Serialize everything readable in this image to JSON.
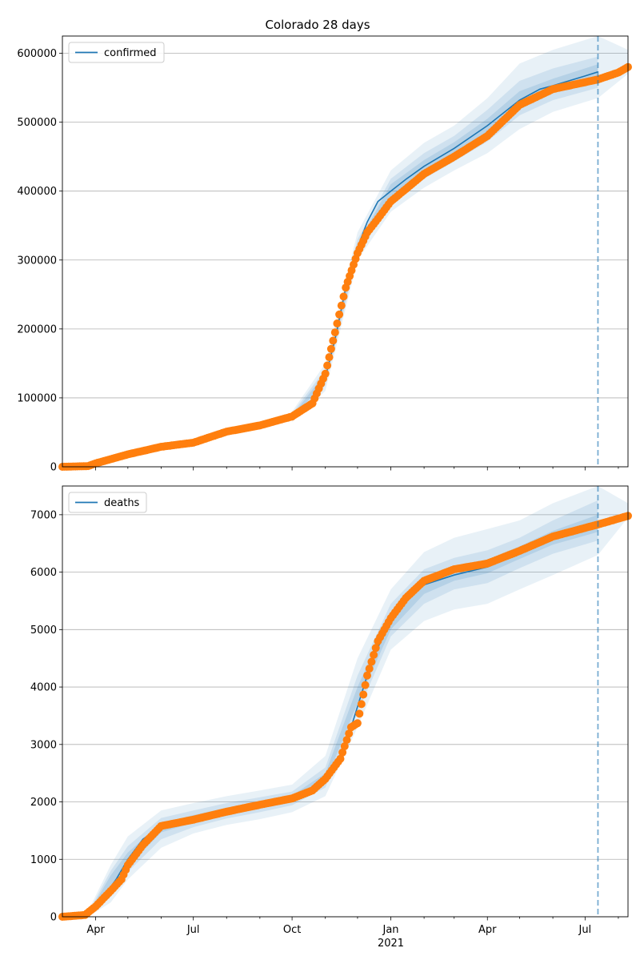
{
  "figure": {
    "title": "Colorado 28 days"
  },
  "colors": {
    "line": "#1f77b4",
    "points": "#ff7f0e",
    "band": "#1f77b4",
    "grid": "#b0b0b0",
    "axis": "#000000"
  },
  "chart_data": [
    {
      "type": "line",
      "title": "Colorado 28 days",
      "xlabel": "",
      "ylabel": "",
      "x_axis": "date",
      "xlim": [
        "2020-03-01",
        "2021-08-10"
      ],
      "ylim": [
        0,
        625000
      ],
      "grid": "horizontal",
      "legend": {
        "position": "top-left",
        "entries": [
          "confirmed"
        ]
      },
      "yticks": [
        "0",
        "100000",
        "200000",
        "300000",
        "400000",
        "500000",
        "600000"
      ],
      "xticks": [
        "Apr",
        "Jul",
        "Oct",
        "Jan",
        "Apr",
        "Jul"
      ],
      "xtick_sublabel": "2021",
      "forecast_start": "2021-07-13",
      "series": [
        {
          "name": "confirmed",
          "kind": "model_line",
          "x": [
            "2020-03-01",
            "2020-04-01",
            "2020-05-01",
            "2020-06-01",
            "2020-07-01",
            "2020-08-01",
            "2020-09-01",
            "2020-10-01",
            "2020-10-20",
            "2020-11-01",
            "2020-11-10",
            "2020-11-20",
            "2020-12-01",
            "2020-12-10",
            "2020-12-20",
            "2021-01-01",
            "2021-01-15",
            "2021-02-01",
            "2021-03-01",
            "2021-04-01",
            "2021-05-01",
            "2021-05-20",
            "2021-06-01",
            "2021-07-01",
            "2021-07-13"
          ],
          "y": [
            0,
            4000,
            18000,
            29000,
            35000,
            50000,
            60000,
            72000,
            90000,
            130000,
            185000,
            260000,
            318000,
            355000,
            385000,
            400000,
            417000,
            436000,
            462000,
            495000,
            532000,
            548000,
            553000,
            567000,
            573000
          ]
        },
        {
          "name": "confirmed observed",
          "kind": "points",
          "x": [
            "2020-03-01",
            "2020-03-25",
            "2020-04-01",
            "2020-05-01",
            "2020-06-01",
            "2020-07-01",
            "2020-08-01",
            "2020-09-01",
            "2020-10-01",
            "2020-10-20",
            "2020-11-01",
            "2020-11-10",
            "2020-11-20",
            "2020-12-01",
            "2020-12-10",
            "2020-12-20",
            "2021-01-01",
            "2021-01-15",
            "2021-02-01",
            "2021-03-01",
            "2021-04-01",
            "2021-05-01",
            "2021-06-01",
            "2021-07-01",
            "2021-07-13",
            "2021-08-01",
            "2021-08-10"
          ],
          "y": [
            0,
            1000,
            5000,
            18000,
            29000,
            35000,
            51000,
            60000,
            73000,
            92000,
            135000,
            195000,
            260000,
            310000,
            340000,
            360000,
            385000,
            403000,
            425000,
            450000,
            480000,
            525000,
            548000,
            558000,
            562000,
            572000,
            580000
          ]
        }
      ],
      "bands": [
        {
          "level": "outer",
          "x": [
            "2020-10-01",
            "2020-11-01",
            "2020-12-01",
            "2021-01-01",
            "2021-02-01",
            "2021-03-01",
            "2021-04-01",
            "2021-05-01",
            "2021-06-01",
            "2021-07-13",
            "2021-08-10"
          ],
          "lower": [
            65000,
            110000,
            300000,
            370000,
            405000,
            430000,
            455000,
            490000,
            515000,
            535000,
            570000
          ],
          "upper": [
            80000,
            150000,
            340000,
            430000,
            470000,
            495000,
            535000,
            585000,
            605000,
            625000,
            605000
          ]
        },
        {
          "level": "middle",
          "x": [
            "2020-10-01",
            "2020-11-01",
            "2020-12-01",
            "2021-01-01",
            "2021-02-01",
            "2021-03-01",
            "2021-04-01",
            "2021-05-01",
            "2021-06-01",
            "2021-07-13"
          ],
          "lower": [
            68000,
            118000,
            308000,
            382000,
            418000,
            443000,
            472000,
            510000,
            532000,
            550000
          ],
          "upper": [
            77000,
            142000,
            330000,
            418000,
            455000,
            480000,
            518000,
            560000,
            578000,
            595000
          ]
        },
        {
          "level": "inner",
          "x": [
            "2020-10-01",
            "2020-11-01",
            "2020-12-01",
            "2021-01-01",
            "2021-02-01",
            "2021-03-01",
            "2021-04-01",
            "2021-05-01",
            "2021-06-01",
            "2021-07-13"
          ],
          "lower": [
            70000,
            124000,
            313000,
            390000,
            428000,
            453000,
            485000,
            522000,
            544000,
            562000
          ],
          "upper": [
            74000,
            136000,
            323000,
            410000,
            445000,
            471000,
            505000,
            545000,
            563000,
            584000
          ]
        }
      ]
    },
    {
      "type": "line",
      "title": "",
      "xlabel": "",
      "ylabel": "",
      "x_axis": "date",
      "xlim": [
        "2020-03-01",
        "2021-08-10"
      ],
      "ylim": [
        0,
        7500
      ],
      "grid": "horizontal",
      "legend": {
        "position": "top-left",
        "entries": [
          "deaths"
        ]
      },
      "yticks": [
        "0",
        "1000",
        "2000",
        "3000",
        "4000",
        "5000",
        "6000",
        "7000"
      ],
      "xticks": [
        "Apr",
        "Jul",
        "Oct",
        "Jan",
        "Apr",
        "Jul"
      ],
      "xtick_sublabel": "2021",
      "forecast_start": "2021-07-13",
      "series": [
        {
          "name": "deaths",
          "kind": "model_line",
          "x": [
            "2020-03-01",
            "2020-03-20",
            "2020-04-01",
            "2020-04-20",
            "2020-05-01",
            "2020-05-15",
            "2020-06-01",
            "2020-07-01",
            "2020-08-01",
            "2020-09-01",
            "2020-10-01",
            "2020-10-20",
            "2020-11-01",
            "2020-11-15",
            "2020-11-25",
            "2020-12-05",
            "2020-12-15",
            "2021-01-01",
            "2021-01-15",
            "2021-02-01",
            "2021-03-01",
            "2021-04-01",
            "2021-05-01",
            "2021-06-01",
            "2021-07-13"
          ],
          "y": [
            0,
            10,
            160,
            650,
            1000,
            1350,
            1580,
            1700,
            1830,
            1940,
            2060,
            2200,
            2400,
            2800,
            3300,
            3900,
            4500,
            5150,
            5530,
            5780,
            5950,
            6090,
            6330,
            6590,
            6820
          ]
        },
        {
          "name": "deaths observed",
          "kind": "points",
          "x": [
            "2020-03-01",
            "2020-03-22",
            "2020-04-01",
            "2020-04-15",
            "2020-04-25",
            "2020-05-01",
            "2020-05-15",
            "2020-06-01",
            "2020-07-01",
            "2020-08-01",
            "2020-09-01",
            "2020-10-01",
            "2020-10-20",
            "2020-11-01",
            "2020-11-15",
            "2020-11-25",
            "2020-12-01",
            "2020-12-10",
            "2020-12-20",
            "2021-01-01",
            "2021-01-15",
            "2021-02-01",
            "2021-03-01",
            "2021-04-01",
            "2021-05-01",
            "2021-06-01",
            "2021-07-13",
            "2021-08-10"
          ],
          "y": [
            0,
            30,
            180,
            450,
            650,
            900,
            1250,
            1580,
            1690,
            1830,
            1950,
            2060,
            2200,
            2400,
            2750,
            3300,
            3370,
            4200,
            4800,
            5200,
            5550,
            5850,
            6050,
            6150,
            6370,
            6620,
            6830,
            6980
          ]
        }
      ],
      "bands": [
        {
          "level": "outer",
          "x": [
            "2020-03-25",
            "2020-04-15",
            "2020-05-01",
            "2020-06-01",
            "2020-07-01",
            "2020-08-01",
            "2020-09-01",
            "2020-10-01",
            "2020-11-01",
            "2020-12-01",
            "2021-01-01",
            "2021-02-01",
            "2021-03-01",
            "2021-04-01",
            "2021-05-01",
            "2021-06-01",
            "2021-07-13",
            "2021-08-10"
          ],
          "lower": [
            0,
            250,
            650,
            1200,
            1450,
            1600,
            1700,
            1820,
            2100,
            3300,
            4650,
            5150,
            5350,
            5450,
            5700,
            5950,
            6300,
            6950
          ],
          "upper": [
            100,
            900,
            1400,
            1850,
            1980,
            2100,
            2200,
            2300,
            2800,
            4500,
            5700,
            6350,
            6600,
            6750,
            6900,
            7200,
            7500,
            7200
          ]
        },
        {
          "level": "middle",
          "x": [
            "2020-03-25",
            "2020-04-15",
            "2020-05-01",
            "2020-06-01",
            "2020-07-01",
            "2020-08-01",
            "2020-09-01",
            "2020-10-01",
            "2020-11-01",
            "2020-12-01",
            "2021-01-01",
            "2021-02-01",
            "2021-03-01",
            "2021-04-01",
            "2021-05-01",
            "2021-06-01",
            "2021-07-13"
          ],
          "lower": [
            0,
            350,
            780,
            1350,
            1560,
            1710,
            1820,
            1940,
            2250,
            3550,
            4880,
            5450,
            5700,
            5810,
            6070,
            6320,
            6550
          ],
          "upper": [
            70,
            800,
            1230,
            1720,
            1850,
            1980,
            2080,
            2180,
            2600,
            4200,
            5450,
            6050,
            6250,
            6380,
            6600,
            6900,
            7250
          ]
        },
        {
          "level": "inner",
          "x": [
            "2020-03-25",
            "2020-04-15",
            "2020-05-01",
            "2020-06-01",
            "2020-07-01",
            "2020-08-01",
            "2020-09-01",
            "2020-10-01",
            "2020-11-01",
            "2020-12-01",
            "2021-01-01",
            "2021-02-01",
            "2021-03-01",
            "2021-04-01",
            "2021-05-01",
            "2021-06-01",
            "2021-07-13"
          ],
          "lower": [
            0,
            420,
            880,
            1470,
            1640,
            1780,
            1890,
            2010,
            2340,
            3720,
            5000,
            5620,
            5850,
            5980,
            6230,
            6480,
            6700
          ],
          "upper": [
            50,
            720,
            1120,
            1630,
            1770,
            1900,
            2010,
            2110,
            2500,
            4000,
            5300,
            5900,
            6080,
            6220,
            6450,
            6720,
            7000
          ]
        }
      ]
    }
  ]
}
